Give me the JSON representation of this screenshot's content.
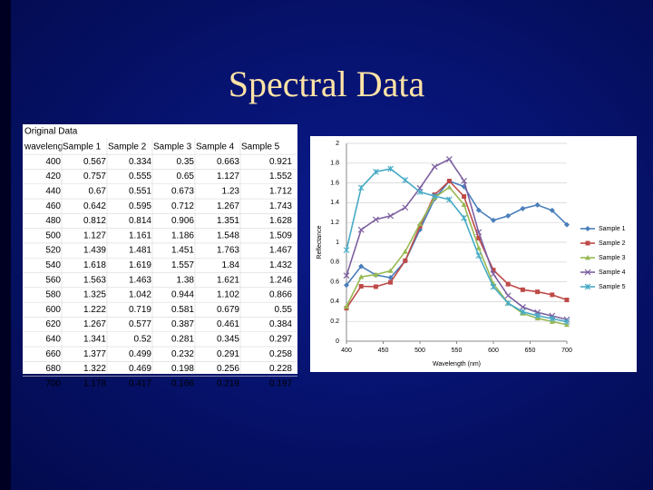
{
  "title": "Spectral Data",
  "table": {
    "title": "Original Data",
    "header": [
      "waveleng",
      "Sample 1",
      "Sample 2",
      "Sample 3",
      "Sample 4",
      "Sample 5"
    ],
    "rows": [
      [
        400,
        0.567,
        0.334,
        0.35,
        0.663,
        0.921
      ],
      [
        420,
        0.757,
        0.555,
        0.65,
        1.127,
        1.552
      ],
      [
        440,
        0.67,
        0.551,
        0.673,
        1.23,
        1.712
      ],
      [
        460,
        0.642,
        0.595,
        0.712,
        1.267,
        1.743
      ],
      [
        480,
        0.812,
        0.814,
        0.906,
        1.351,
        1.628
      ],
      [
        500,
        1.127,
        1.161,
        1.186,
        1.548,
        1.509
      ],
      [
        520,
        1.439,
        1.481,
        1.451,
        1.763,
        1.467
      ],
      [
        540,
        1.618,
        1.619,
        1.557,
        1.84,
        1.432
      ],
      [
        560,
        1.563,
        1.463,
        1.38,
        1.621,
        1.246
      ],
      [
        580,
        1.325,
        1.042,
        0.944,
        1.102,
        0.866
      ],
      [
        600,
        1.222,
        0.719,
        0.581,
        0.679,
        0.55
      ],
      [
        620,
        1.267,
        0.577,
        0.387,
        0.461,
        0.384
      ],
      [
        640,
        1.341,
        0.52,
        0.281,
        0.345,
        0.297
      ],
      [
        660,
        1.377,
        0.499,
        0.232,
        0.291,
        0.258
      ],
      [
        680,
        1.322,
        0.469,
        0.198,
        0.256,
        0.228
      ],
      [
        700,
        1.178,
        0.417,
        0.166,
        0.219,
        0.197
      ]
    ]
  },
  "chart_data": {
    "type": "line",
    "x_label": "Wavelength (nm)",
    "y_label": "Reflectance",
    "x": [
      400,
      420,
      440,
      460,
      480,
      500,
      520,
      540,
      560,
      580,
      600,
      620,
      640,
      660,
      680,
      700
    ],
    "xlim": [
      400,
      700
    ],
    "xticks": [
      400,
      450,
      500,
      550,
      600,
      650,
      700
    ],
    "ylim": [
      0,
      2
    ],
    "yticks": [
      0,
      0.2,
      0.4,
      0.6,
      0.8,
      1,
      1.2,
      1.4,
      1.6,
      1.8,
      2
    ],
    "grid": true,
    "legend": "right",
    "series": [
      {
        "name": "Sample 1",
        "color": "#4a7ebb",
        "values": [
          0.567,
          0.757,
          0.67,
          0.642,
          0.812,
          1.127,
          1.439,
          1.618,
          1.563,
          1.325,
          1.222,
          1.267,
          1.341,
          1.377,
          1.322,
          1.178
        ]
      },
      {
        "name": "Sample 2",
        "color": "#be4b48",
        "values": [
          0.334,
          0.555,
          0.551,
          0.595,
          0.814,
          1.161,
          1.481,
          1.619,
          1.463,
          1.042,
          0.719,
          0.577,
          0.52,
          0.499,
          0.469,
          0.417
        ]
      },
      {
        "name": "Sample 3",
        "color": "#98b954",
        "values": [
          0.35,
          0.65,
          0.673,
          0.712,
          0.906,
          1.186,
          1.451,
          1.557,
          1.38,
          0.944,
          0.581,
          0.387,
          0.281,
          0.232,
          0.198,
          0.166
        ]
      },
      {
        "name": "Sample 4",
        "color": "#7d60a0",
        "values": [
          0.663,
          1.127,
          1.23,
          1.267,
          1.351,
          1.548,
          1.763,
          1.84,
          1.621,
          1.102,
          0.679,
          0.461,
          0.345,
          0.291,
          0.256,
          0.219
        ]
      },
      {
        "name": "Sample 5",
        "color": "#46aac5",
        "values": [
          0.921,
          1.552,
          1.712,
          1.743,
          1.628,
          1.509,
          1.467,
          1.432,
          1.246,
          0.866,
          0.55,
          0.384,
          0.297,
          0.258,
          0.228,
          0.197
        ]
      }
    ]
  }
}
